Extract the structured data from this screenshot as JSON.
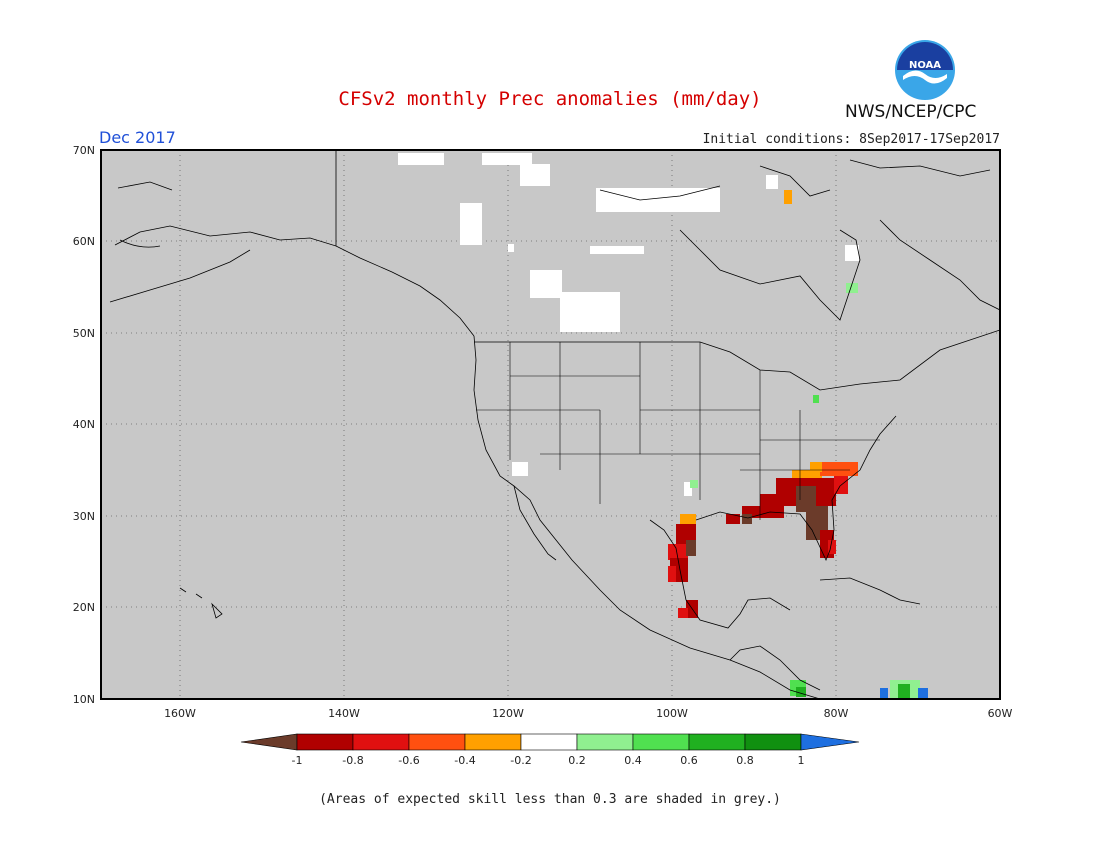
{
  "header": {
    "title": "CFSv2 monthly Prec anomalies (mm/day)",
    "agency": "NWS/NCEP/CPC",
    "month": "Dec 2017",
    "initial_conditions": "Initial conditions: 8Sep2017-17Sep2017",
    "logo_text": "NOAA"
  },
  "axes": {
    "lat_labels": [
      "70N",
      "60N",
      "50N",
      "40N",
      "30N",
      "20N",
      "10N"
    ],
    "lon_labels": [
      "160W",
      "140W",
      "120W",
      "100W",
      "80W",
      "60W"
    ]
  },
  "colorbar": {
    "labels": [
      "-1",
      "-0.8",
      "-0.6",
      "-0.4",
      "-0.2",
      "0.2",
      "0.4",
      "0.6",
      "0.8",
      "1"
    ],
    "colors": [
      "#6b3b2a",
      "#b00000",
      "#e01010",
      "#ff5010",
      "#ffa000",
      "#ffffff",
      "#90f090",
      "#50e050",
      "#20b020",
      "#109010",
      "#1e6fe0"
    ]
  },
  "footnote": "(Areas of expected skill less than 0.3 are shaded in grey.)",
  "colors": {
    "grey_mask": "#c8c8c8",
    "title": "#d40000",
    "month": "#2050d8"
  }
}
